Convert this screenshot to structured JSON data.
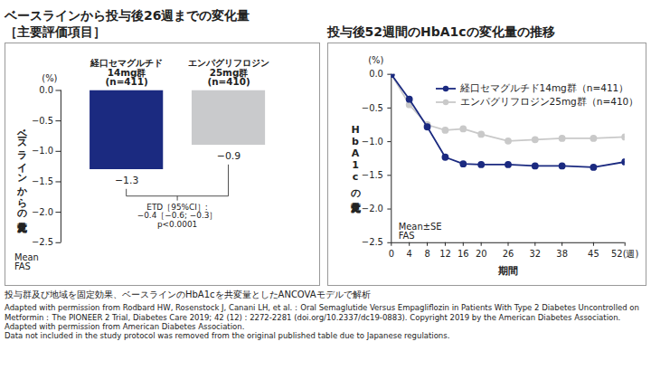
{
  "chart_data": [
    {
      "type": "bar",
      "title": "ベースラインから投与後26週までの変化量\n［主要評価項目］",
      "categories": [
        "経口セマグルチド\n14mg群\n(n=411)",
        "エンパグリフロジン\n25mg群\n(n=410)"
      ],
      "values": [
        -1.3,
        -0.9
      ],
      "value_labels": [
        "−1.3",
        "−0.9"
      ],
      "data_labels": true,
      "colors": [
        "#1b2a80",
        "#c9cacc"
      ],
      "ylim": [
        -2.5,
        0
      ],
      "yticks": [
        {
          "value": 0,
          "label": "0.0"
        },
        {
          "value": -0.5,
          "label": "−0.5"
        },
        {
          "value": -1,
          "label": "−1.0"
        },
        {
          "value": -1.5,
          "label": "−1.5"
        },
        {
          "value": -2,
          "label": "−2.0"
        },
        {
          "value": -2.5,
          "label": "−2.5"
        }
      ],
      "ylabel": "ベースラインからの変化量",
      "yunit": "(%)",
      "annotations": [
        "ETD［95%CI］:\n−0.4［−0.6; −0.3］\np<0.0001",
        "Mean\nFAS"
      ]
    },
    {
      "type": "line",
      "title": "投与後52週間のHbA1cの変化量の推移",
      "x": [
        0,
        4,
        8,
        12,
        16,
        20,
        26,
        32,
        38,
        45,
        52
      ],
      "xlim": [
        0,
        52
      ],
      "xticks": [
        0,
        4,
        8,
        12,
        16,
        20,
        26,
        32,
        38,
        45,
        {
          "value": 52,
          "label": "52(週)"
        }
      ],
      "xlabel": "期間",
      "ylim": [
        -2.5,
        0
      ],
      "yticks": [
        {
          "value": 0,
          "label": "0.0"
        },
        {
          "value": -0.5,
          "label": "−0.5"
        },
        {
          "value": -1,
          "label": "−1.0"
        },
        {
          "value": -1.5,
          "label": "−1.5"
        },
        {
          "value": -2,
          "label": "−2.0"
        },
        {
          "value": -2.5,
          "label": "−2.5"
        }
      ],
      "ylabel": "HbA1cの変化量",
      "yunit": "(%)",
      "legend": "top",
      "series": [
        {
          "name": "経口セマグルチド14mg群（n=411）",
          "color": "#1b2a80",
          "marker": "circle",
          "values": [
            0,
            -0.37,
            -0.78,
            -1.23,
            -1.33,
            -1.34,
            -1.34,
            -1.36,
            -1.36,
            -1.38,
            -1.3
          ],
          "se": [
            0,
            0.02,
            0.02,
            0.03,
            0.03,
            0.03,
            0.03,
            0.03,
            0.03,
            0.03,
            0.04
          ]
        },
        {
          "name": "エンパグリフロジン25mg群（n=410）",
          "color": "#c9c9c9",
          "marker": "circle",
          "values": [
            0,
            -0.45,
            -0.75,
            -0.83,
            -0.81,
            -0.89,
            -0.99,
            -0.97,
            -0.95,
            -0.95,
            -0.93
          ],
          "se": [
            0,
            0.02,
            0.02,
            0.03,
            0.03,
            0.03,
            0.03,
            0.03,
            0.03,
            0.03,
            0.03
          ]
        }
      ],
      "annotations": [
        "Mean±SE\nFAS"
      ]
    }
  ],
  "footnotes": [
    "投与群及び地域を固定効果、ベースラインのHbA1cを共変量としたANCOVAモデルで解析",
    "Adapted with permission from Rodbard HW, Rosenstock J, Canani LH, et al.：Oral Semaglutide Versus Empagliflozin in Patients With Type 2 Diabetes Uncontrolled on Metformin：The PIONEER 2 Trial, Diabetes Care 2019; 42 (12) : 2272-2281 (doi.org/10.2337/dc19-0883). Copyright 2019 by the American Diabetes Association.",
    "Adapted with permission from American Diabetes Association.",
    "Data not included in the study protocol was removed from the original published table due to Japanese regulations."
  ]
}
